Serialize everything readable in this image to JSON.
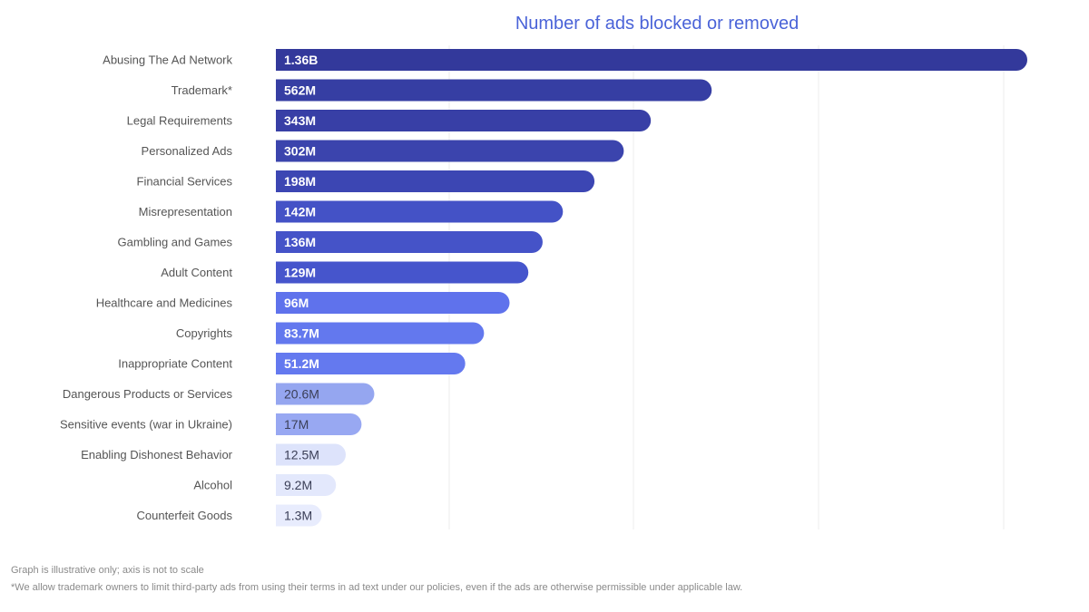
{
  "chart_data": {
    "type": "bar",
    "orientation": "horizontal",
    "title": "Number of ads blocked or removed",
    "categories": [
      "Abusing The Ad Network",
      "Trademark*",
      "Legal Requirements",
      "Personalized Ads",
      "Financial Services",
      "Misrepresentation",
      "Gambling and Games",
      "Adult Content",
      "Healthcare and Medicines",
      "Copyrights",
      "Inappropriate Content",
      "Dangerous Products or Services",
      "Sensitive events (war in Ukraine)",
      "Enabling Dishonest Behavior",
      "Alcohol",
      "Counterfeit Goods"
    ],
    "value_labels": [
      "1.36B",
      "562M",
      "343M",
      "302M",
      "198M",
      "142M",
      "136M",
      "129M",
      "96M",
      "83.7M",
      "51.2M",
      "20.6M",
      "17M",
      "12.5M",
      "9.2M",
      "1.3M"
    ],
    "values": [
      1360000000,
      562000000,
      343000000,
      302000000,
      198000000,
      142000000,
      136000000,
      129000000,
      96000000,
      83700000,
      51200000,
      20600000,
      17000000,
      12500000,
      9200000,
      1300000
    ],
    "scale": "illustrative, not to scale",
    "illustrative_bar_lengths": [
      1.0,
      0.58,
      0.499,
      0.463,
      0.424,
      0.382,
      0.355,
      0.336,
      0.311,
      0.277,
      0.252,
      0.131,
      0.114,
      0.093,
      0.08,
      0.061
    ],
    "grid": "vertical",
    "legend": "none"
  },
  "colors": {
    "title": "#4a63d8",
    "bar_fills": [
      "#33399b",
      "#363ea3",
      "#383fa6",
      "#3b44ad",
      "#3c46b3",
      "#4452c6",
      "#4553c8",
      "#4655cc",
      "#5f72ec",
      "#6378ee",
      "#6479ef",
      "#95a6f0",
      "#98a8f2",
      "#dde3fb",
      "#e3e8fc",
      "#e8ecfd"
    ],
    "value_text_light": "#ffffff",
    "value_text_dark": "#3b3f57",
    "category_text": "#555555",
    "grid": "#ececec"
  },
  "footnotes": {
    "scale_note": "Graph is illustrative only; axis is not to scale",
    "trademark_note": "*We allow trademark owners to limit third-party ads from using their terms in ad text under our policies, even if the ads are otherwise permissible under applicable law."
  }
}
